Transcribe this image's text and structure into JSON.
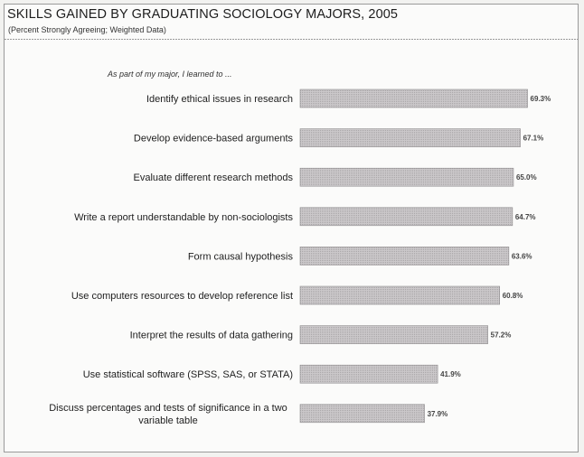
{
  "chart_data": {
    "type": "bar",
    "orientation": "horizontal",
    "title": "SKILLS GAINED BY GRADUATING SOCIOLOGY MAJORS, 2005",
    "subtitle": "(Percent Strongly Agreeing; Weighted Data)",
    "intro": "As part of my major, I learned to ...",
    "categories": [
      [
        "Identify ethical issues in research"
      ],
      [
        "Develop evidence-based arguments"
      ],
      [
        "Evaluate different research methods"
      ],
      [
        "Write a report understandable by non-sociologists"
      ],
      [
        "Form causal hypothesis"
      ],
      [
        "Use computers resources to develop reference list"
      ],
      [
        "Interpret the results of data gathering"
      ],
      [
        "Use statistical software (SPSS, SAS, or STATA)"
      ],
      [
        "Discuss percentages and tests of significance in a two",
        "variable table"
      ]
    ],
    "values": [
      69.3,
      67.1,
      65.0,
      64.7,
      63.6,
      60.8,
      57.2,
      41.9,
      37.9
    ],
    "value_labels": [
      "69.3%",
      "67.1%",
      "65.0%",
      "64.7%",
      "63.6%",
      "60.8%",
      "57.2%",
      "41.9%",
      "37.9%"
    ],
    "xlim": [
      0,
      100
    ],
    "grid": false,
    "bar_color": "#c4c1c3",
    "bar_border_color": "#8e8b8d"
  }
}
